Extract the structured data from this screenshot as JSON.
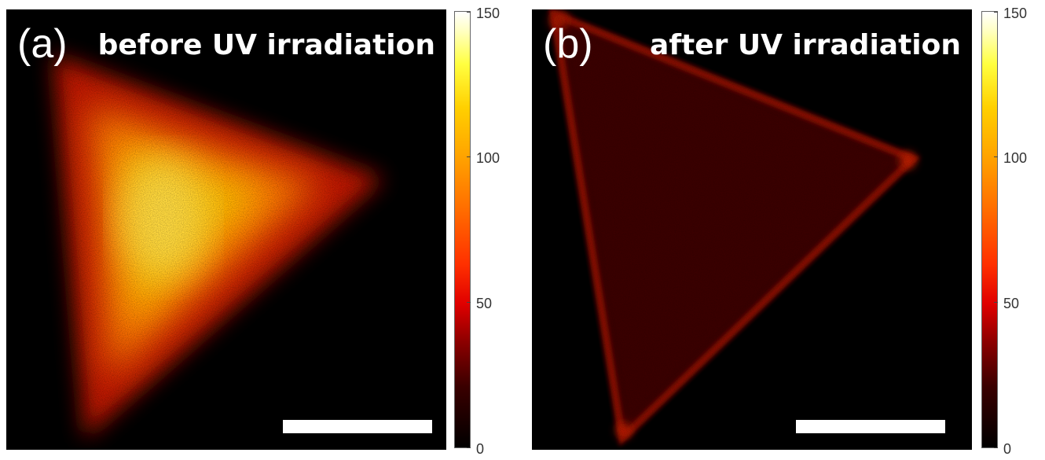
{
  "panels": [
    {
      "letter": "(a)",
      "title": "before UV irradiation",
      "colorbar_ticks": [
        "0",
        "50",
        "100",
        "150"
      ]
    },
    {
      "letter": "(b)",
      "title": "after UV irradiation",
      "colorbar_ticks": [
        "0",
        "50",
        "100",
        "150"
      ]
    }
  ],
  "colorbar": {
    "min": 0,
    "max": 150,
    "colormap": "hot",
    "stops": [
      "#000000",
      "#8a0000",
      "#e00000",
      "#ff6a00",
      "#ffa000",
      "#ffd000",
      "#ffff40",
      "#ffffff"
    ]
  },
  "colors": {
    "background": "#000000",
    "text": "#ffffff",
    "emission_before": "#ffb000",
    "emission_after": "#a01000"
  }
}
